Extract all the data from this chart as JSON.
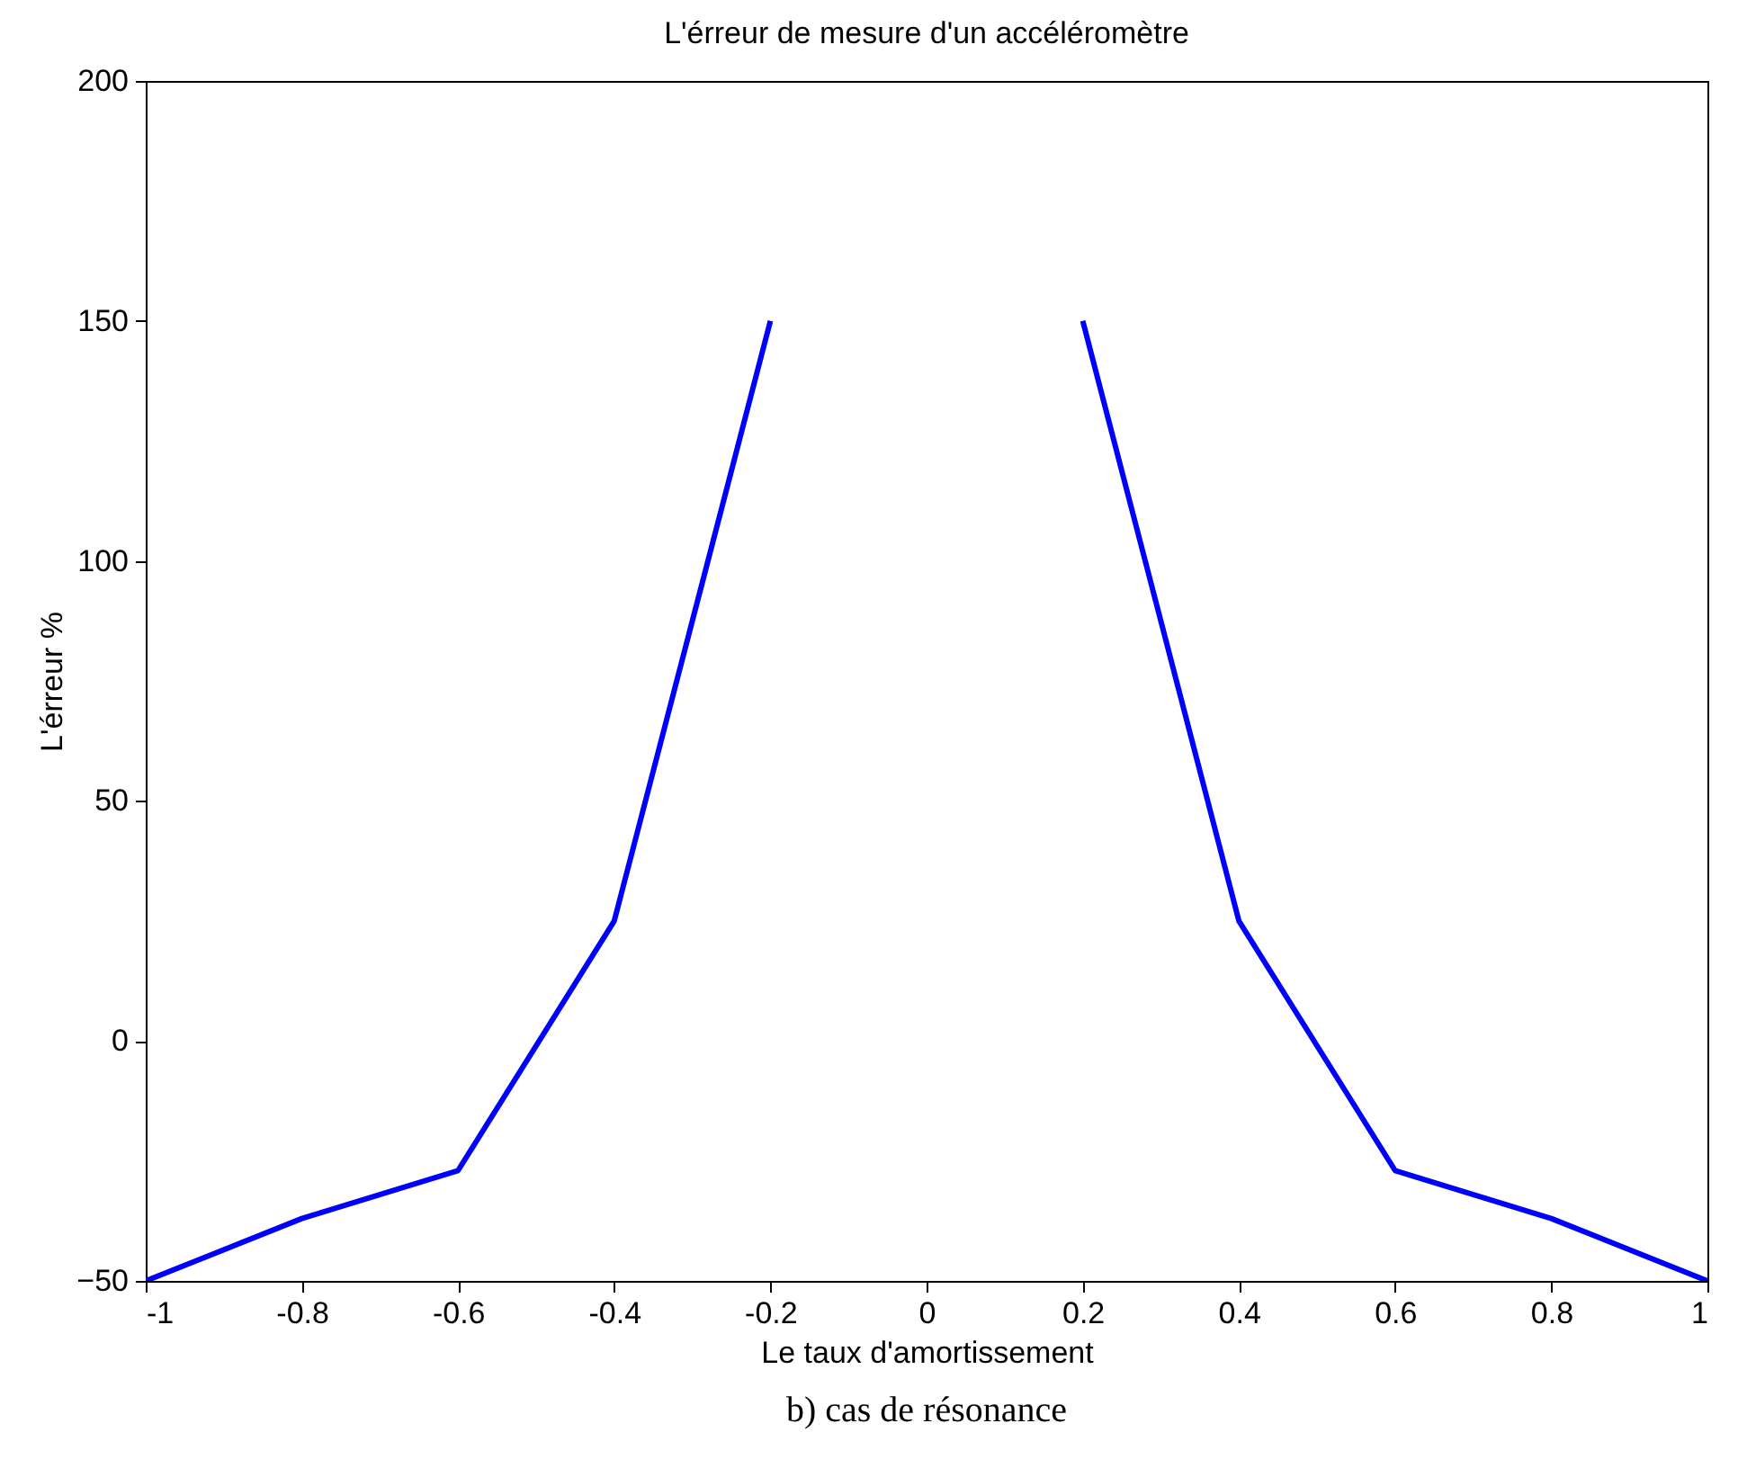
{
  "chart_data": {
    "type": "line",
    "title": "L'érreur de mesure d'un accéléromètre",
    "xlabel": "Le taux d'amortissement",
    "ylabel": "L'érreur %",
    "x": [
      -1,
      -0.8,
      -0.6,
      -0.4,
      -0.2,
      0,
      0.2,
      0.4,
      0.6,
      0.8,
      1
    ],
    "series": [
      {
        "color": "#0000ff",
        "values": [
          -50,
          -37,
          -27,
          25,
          150,
          null,
          150,
          25,
          -27,
          -37,
          -50
        ]
      }
    ],
    "xlim": [
      -1,
      1
    ],
    "xticks": [
      -1,
      -0.8,
      -0.6,
      -0.4,
      -0.2,
      0,
      0.2,
      0.4,
      0.6,
      0.8,
      1
    ],
    "ylim": [
      -50,
      200
    ],
    "yticks": [
      -50,
      0,
      50,
      100,
      150,
      200
    ],
    "grid": false,
    "marker": "none",
    "line_style": "solid",
    "annotations": [
      "b) cas de résonance"
    ]
  }
}
